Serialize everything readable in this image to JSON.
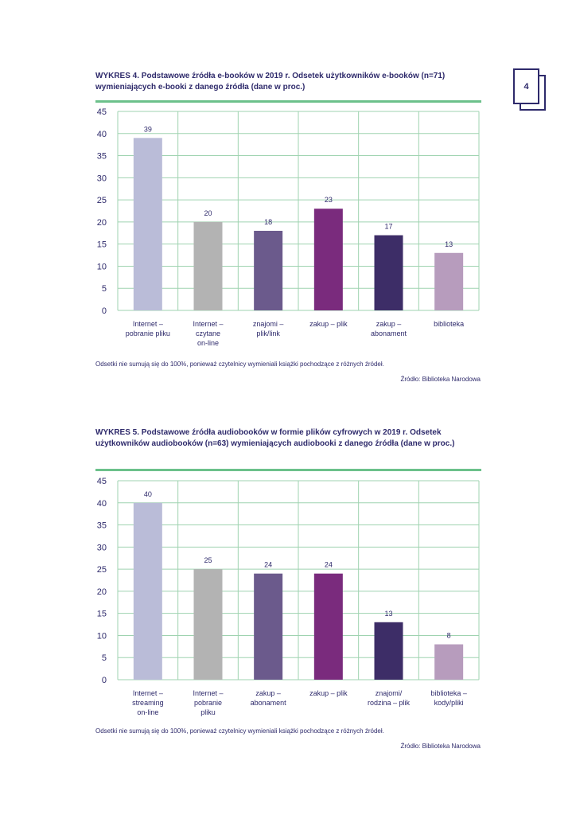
{
  "page": {
    "number": "4"
  },
  "charts": [
    {
      "title": "WYKRES 4. Podstawowe źródła e-booków w 2019 r. Odsetek użytkowników e-booków (n=71) wymieniających e-booki z danego źródła (dane w proc.)",
      "note": "Odsetki nie sumują się do 100%, ponieważ czytelnicy wymieniali książki pochodzące z różnych źródeł.",
      "source": "Źródło: Biblioteka Narodowa"
    },
    {
      "title": "WYKRES 5. Podstawowe źródła audiobooków w formie plików cyfrowych w 2019 r. Odsetek użytkowników audiobooków (n=63) wymieniających audiobooki z danego źródła (dane w proc.)",
      "note": "Odsetki nie sumują się do 100%, ponieważ czytelnicy wymieniali książki pochodzące z różnych źródeł.",
      "source": "Źródło: Biblioteka Narodowa"
    }
  ],
  "colors": {
    "title": "#2e2a6b",
    "rule": "#6cc18b",
    "grid": "#9fd3b0",
    "axis": "#2e2a6b",
    "bars": [
      "#babcd8",
      "#b3b3b3",
      "#6b5a8c",
      "#7a2b7d",
      "#3d2d67",
      "#b79cbd"
    ]
  },
  "chart_data": [
    {
      "type": "bar",
      "title": "WYKRES 4. Podstawowe źródła e-booków w 2019 r. Odsetek użytkowników e-booków (n=71) wymieniających e-booki z danego źródła (dane w proc.)",
      "categories": [
        [
          "Internet –",
          "pobranie pliku"
        ],
        [
          "Internet –",
          "czytane",
          "on-line"
        ],
        [
          "znajomi –",
          "plik/link"
        ],
        [
          "zakup – plik"
        ],
        [
          "zakup –",
          "abonament"
        ],
        [
          "biblioteka"
        ]
      ],
      "values": [
        39,
        20,
        18,
        23,
        17,
        13
      ],
      "ylim": [
        0,
        45
      ],
      "yticks": [
        0,
        5,
        10,
        15,
        20,
        25,
        30,
        35,
        40,
        45
      ],
      "xlabel": "",
      "ylabel": "",
      "grid": true
    },
    {
      "type": "bar",
      "title": "WYKRES 5. Podstawowe źródła audiobooków w formie plików cyfrowych w 2019 r. Odsetek użytkowników audiobooków (n=63) wymieniających audiobooki z danego źródła (dane w proc.)",
      "categories": [
        [
          "Internet –",
          "streaming",
          "on-line"
        ],
        [
          "Internet –",
          "pobranie",
          "pliku"
        ],
        [
          "zakup –",
          "abonament"
        ],
        [
          "zakup – plik"
        ],
        [
          "znajomi/",
          "rodzina – plik"
        ],
        [
          "biblioteka –",
          "kody/pliki"
        ]
      ],
      "values": [
        40,
        25,
        24,
        24,
        13,
        8
      ],
      "ylim": [
        0,
        45
      ],
      "yticks": [
        0,
        5,
        10,
        15,
        20,
        25,
        30,
        35,
        40,
        45
      ],
      "xlabel": "",
      "ylabel": "",
      "grid": true
    }
  ]
}
